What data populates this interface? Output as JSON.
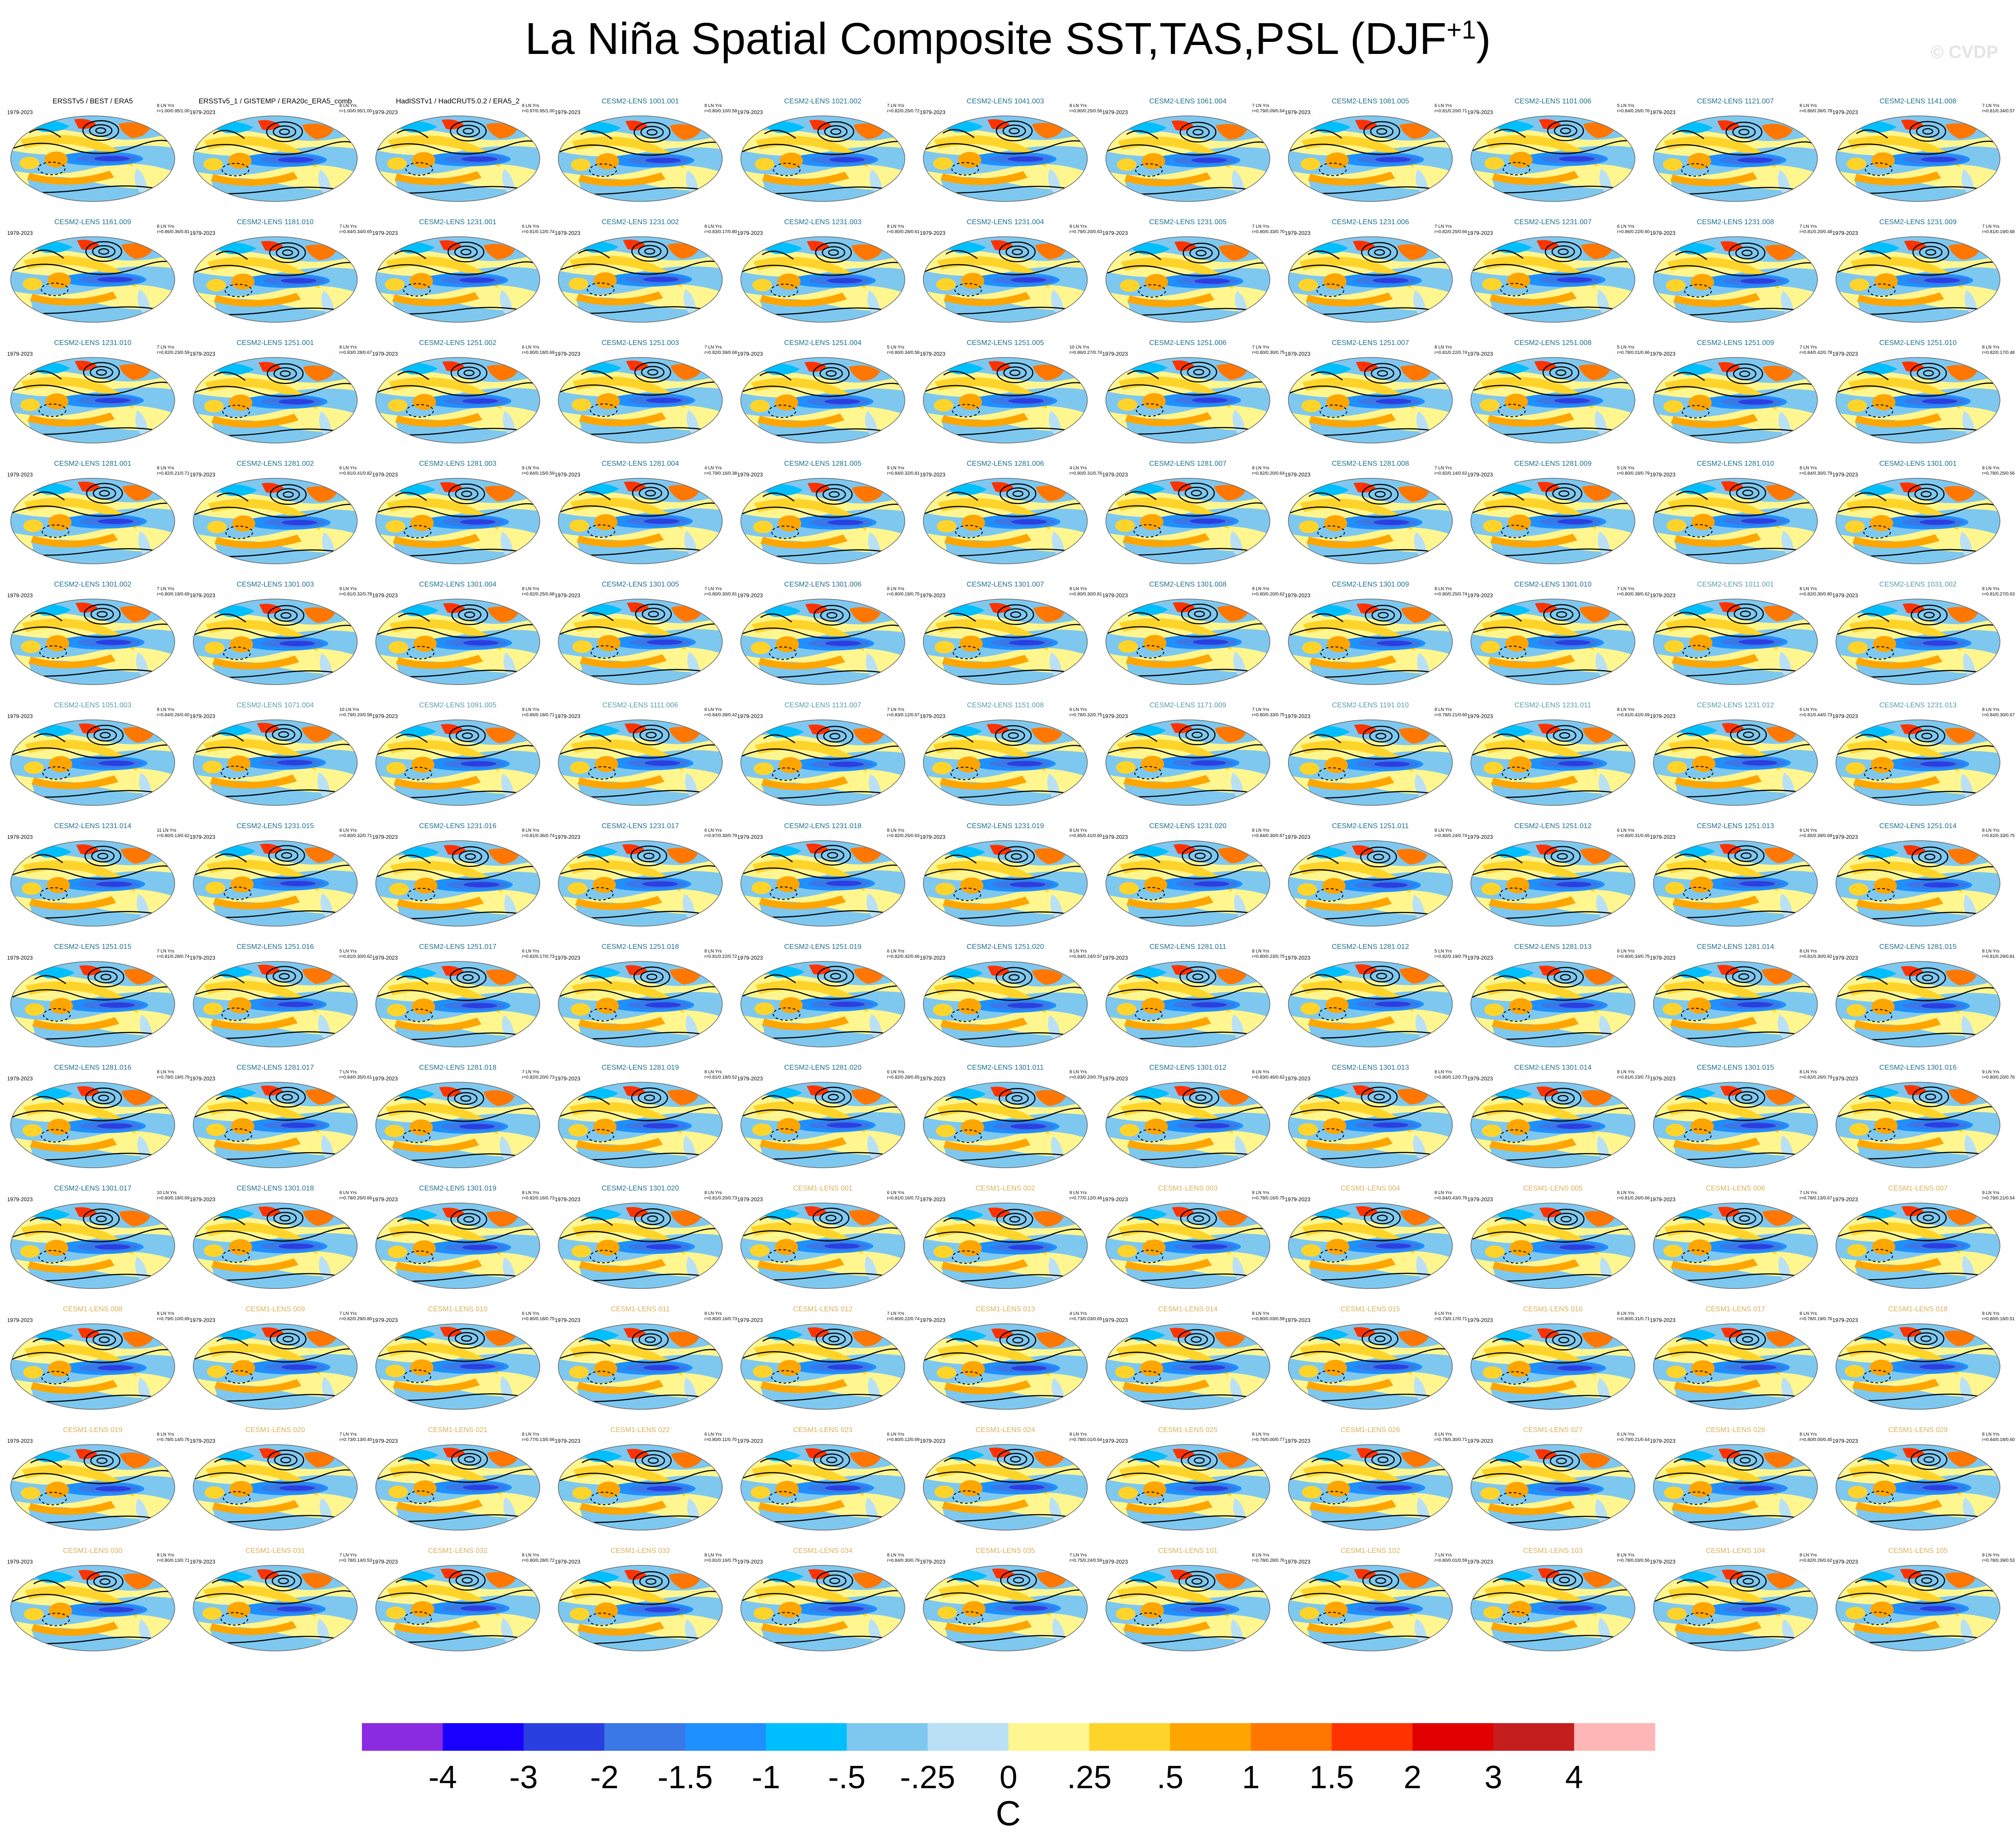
{
  "title": "La Niña Spatial Composite SST,TAS,PSL (DJF",
  "title_superscript": "+1",
  "title_suffix": ")",
  "watermark": "© CVDP",
  "period": "1979-2023",
  "panels": [
    {
      "label": "ERSSTv5 / BEST / ERA5",
      "kind": "obs",
      "n": "8 LN Yrs",
      "stats": "r=1.00/0.95/1.00"
    },
    {
      "label": "ERSSTv5_1 / GISTEMP / ERA20c_ERA5_comb",
      "kind": "obs",
      "n": "8 LN Yrs",
      "stats": "r=1.00/0.95/1.00"
    },
    {
      "label": "HadISSTv1 / HadCRUT5.0.2 / ERA5_2",
      "kind": "obs",
      "n": "8 LN Yrs",
      "stats": "r=0.97/0.95/1.00"
    },
    {
      "label": "CESM2-LENS 1001.001",
      "kind": "cesm2",
      "n": "8 LN Yrs",
      "stats": "r=0.80/0.10/0.58"
    },
    {
      "label": "CESM2-LENS 1021.002",
      "kind": "cesm2",
      "n": "7 LN Yrs",
      "stats": "r=0.82/0.25/0.72"
    },
    {
      "label": "CESM2-LENS 1041.003",
      "kind": "cesm2",
      "n": "8 LN Yrs",
      "stats": "r=0.80/0.25/0.56"
    },
    {
      "label": "CESM2-LENS 1061.004",
      "kind": "cesm2",
      "n": "7 LN Yrs",
      "stats": "r=0.79/0.09/0.64"
    },
    {
      "label": "CESM2-LENS 1081.005",
      "kind": "cesm2",
      "n": "6 LN Yrs",
      "stats": "r=0.81/0.20/0.71"
    },
    {
      "label": "CESM2-LENS 1101.006",
      "kind": "cesm2",
      "n": "5 LN Yrs",
      "stats": "r=0.84/0.26/0.76"
    },
    {
      "label": "CESM2-LENS 1121.007",
      "kind": "cesm2",
      "n": "8 LN Yrs",
      "stats": "r=0.86/0.36/0.78"
    },
    {
      "label": "CESM2-LENS 1141.008",
      "kind": "cesm2",
      "n": "7 LN Yrs",
      "stats": "r=0.81/0.34/0.57"
    },
    {
      "label": "CESM2-LENS 1161.009",
      "kind": "cesm2",
      "n": "8 LN Yrs",
      "stats": "r=0.86/0.36/0.81"
    },
    {
      "label": "CESM2-LENS 1181.010",
      "kind": "cesm2",
      "n": "7 LN Yrs",
      "stats": "r=0.84/0.34/0.65"
    },
    {
      "label": "CESM2-LENS 1231.001",
      "kind": "cesm2",
      "n": "6 LN Yrs",
      "stats": "r=0.81/0.12/0.74"
    },
    {
      "label": "CESM2-LENS 1231.002",
      "kind": "cesm2",
      "n": "8 LN Yrs",
      "stats": "r=0.83/0.17/0.80"
    },
    {
      "label": "CESM2-LENS 1231.003",
      "kind": "cesm2",
      "n": "8 LN Yrs",
      "stats": "r=0.80/0.28/0.61"
    },
    {
      "label": "CESM2-LENS 1231.004",
      "kind": "cesm2",
      "n": "9 LN Yrs",
      "stats": "r=0.79/0.20/0.63"
    },
    {
      "label": "CESM2-LENS 1231.005",
      "kind": "cesm2",
      "n": "7 LN Yrs",
      "stats": "r=0.80/0.33/0.70"
    },
    {
      "label": "CESM2-LENS 1231.006",
      "kind": "cesm2",
      "n": "7 LN Yrs",
      "stats": "r=0.82/0.25/0.66"
    },
    {
      "label": "CESM2-LENS 1231.007",
      "kind": "cesm2",
      "n": "6 LN Yrs",
      "stats": "r=0.86/0.22/0.60"
    },
    {
      "label": "CESM2-LENS 1231.008",
      "kind": "cesm2",
      "n": "7 LN Yrs",
      "stats": "r=0.81/0.20/0.48"
    },
    {
      "label": "CESM2-LENS 1231.009",
      "kind": "cesm2",
      "n": "7 LN Yrs",
      "stats": "r=0.81/0.19/0.68"
    },
    {
      "label": "CESM2-LENS 1231.010",
      "kind": "cesm2",
      "n": "7 LN Yrs",
      "stats": "r=0.82/0.23/0.59"
    },
    {
      "label": "CESM2-LENS 1251.001",
      "kind": "cesm2",
      "n": "8 LN Yrs",
      "stats": "r=0.83/0.28/0.67"
    },
    {
      "label": "CESM2-LENS 1251.002",
      "kind": "cesm2",
      "n": "6 LN Yrs",
      "stats": "r=0.80/0.18/0.69"
    },
    {
      "label": "CESM2-LENS 1251.003",
      "kind": "cesm2",
      "n": "7 LN Yrs",
      "stats": "r=0.82/0.39/0.68"
    },
    {
      "label": "CESM2-LENS 1251.004",
      "kind": "cesm2",
      "n": "5 LN Yrs",
      "stats": "r=0.80/0.34/0.58"
    },
    {
      "label": "CESM2-LENS 1251.005",
      "kind": "cesm2",
      "n": "10 LN Yrs",
      "stats": "r=0.86/0.27/0.74"
    },
    {
      "label": "CESM2-LENS 1251.006",
      "kind": "cesm2",
      "n": "7 LN Yrs",
      "stats": "r=0.80/0.30/0.75"
    },
    {
      "label": "CESM2-LENS 1251.007",
      "kind": "cesm2",
      "n": "8 LN Yrs",
      "stats": "r=0.81/0.22/0.74"
    },
    {
      "label": "CESM2-LENS 1251.008",
      "kind": "cesm2",
      "n": "5 LN Yrs",
      "stats": "r=0.78/0.01/0.66"
    },
    {
      "label": "CESM2-LENS 1251.009",
      "kind": "cesm2",
      "n": "7 LN Yrs",
      "stats": "r=0.84/0.42/0.78"
    },
    {
      "label": "CESM2-LENS 1251.010",
      "kind": "cesm2",
      "n": "8 LN Yrs",
      "stats": "r=0.82/0.17/0.48"
    },
    {
      "label": "CESM2-LENS 1281.001",
      "kind": "cesm2",
      "n": "8 LN Yrs",
      "stats": "r=0.82/0.21/0.71"
    },
    {
      "label": "CESM2-LENS 1281.002",
      "kind": "cesm2",
      "n": "6 LN Yrs",
      "stats": "r=0.81/0.41/0.82"
    },
    {
      "label": "CESM2-LENS 1281.003",
      "kind": "cesm2",
      "n": "9 LN Yrs",
      "stats": "r=0.84/0.15/0.59"
    },
    {
      "label": "CESM2-LENS 1281.004",
      "kind": "cesm2",
      "n": "4 LN Yrs",
      "stats": "r=0.79/0.16/0.38"
    },
    {
      "label": "CESM2-LENS 1281.005",
      "kind": "cesm2",
      "n": "9 LN Yrs",
      "stats": "r=0.84/0.32/0.81"
    },
    {
      "label": "CESM2-LENS 1281.006",
      "kind": "cesm2",
      "n": "4 LN Yrs",
      "stats": "r=0.80/0.31/0.76"
    },
    {
      "label": "CESM2-LENS 1281.007",
      "kind": "cesm2",
      "n": "8 LN Yrs",
      "stats": "r=0.82/0.20/0.64"
    },
    {
      "label": "CESM2-LENS 1281.008",
      "kind": "cesm2",
      "n": "7 LN Yrs",
      "stats": "r=0.82/0.14/0.62"
    },
    {
      "label": "CESM2-LENS 1281.009",
      "kind": "cesm2",
      "n": "5 LN Yrs",
      "stats": "r=0.80/0.18/0.79"
    },
    {
      "label": "CESM2-LENS 1281.010",
      "kind": "cesm2",
      "n": "8 LN Yrs",
      "stats": "r=0.84/0.30/0.79"
    },
    {
      "label": "CESM2-LENS 1301.001",
      "kind": "cesm2",
      "n": "8 LN Yrs",
      "stats": "r=0.78/0.25/0.56"
    },
    {
      "label": "CESM2-LENS 1301.002",
      "kind": "cesm2",
      "n": "7 LN Yrs",
      "stats": "r=0.80/0.19/0.69"
    },
    {
      "label": "CESM2-LENS 1301.003",
      "kind": "cesm2",
      "n": "9 LN Yrs",
      "stats": "r=0.81/0.32/0.78"
    },
    {
      "label": "CESM2-LENS 1301.004",
      "kind": "cesm2",
      "n": "8 LN Yrs",
      "stats": "r=0.82/0.25/0.68"
    },
    {
      "label": "CESM2-LENS 1301.005",
      "kind": "cesm2",
      "n": "7 LN Yrs",
      "stats": "r=0.80/0.30/0.81"
    },
    {
      "label": "CESM2-LENS 1301.006",
      "kind": "cesm2",
      "n": "8 LN Yrs",
      "stats": "r=0.80/0.19/0.75"
    },
    {
      "label": "CESM2-LENS 1301.007",
      "kind": "cesm2",
      "n": "8 LN Yrs",
      "stats": "r=0.80/0.30/0.81"
    },
    {
      "label": "CESM2-LENS 1301.008",
      "kind": "cesm2",
      "n": "9 LN Yrs",
      "stats": "r=0.80/0.20/0.62"
    },
    {
      "label": "CESM2-LENS 1301.009",
      "kind": "cesm2",
      "n": "8 LN Yrs",
      "stats": "r=0.80/0.25/0.74"
    },
    {
      "label": "CESM2-LENS 1301.010",
      "kind": "cesm2",
      "n": "7 LN Yrs",
      "stats": "r=0.80/0.38/0.62"
    },
    {
      "label": "CESM2-LENS 1011.001",
      "kind": "cesm2b",
      "n": "8 LN Yrs",
      "stats": "r=0.82/0.30/0.80"
    },
    {
      "label": "CESM2-LENS 1031.002",
      "kind": "cesm2b",
      "n": "8 LN Yrs",
      "stats": "r=0.81/0.27/0.63"
    },
    {
      "label": "CESM2-LENS 1051.003",
      "kind": "cesm2b",
      "n": "8 LN Yrs",
      "stats": "r=0.84/0.26/0.60"
    },
    {
      "label": "CESM2-LENS 1071.004",
      "kind": "cesm2b",
      "n": "10 LN Yrs",
      "stats": "r=0.79/0.20/0.58"
    },
    {
      "label": "CESM2-LENS 1091.005",
      "kind": "cesm2b",
      "n": "9 LN Yrs",
      "stats": "r=0.86/0.18/0.71"
    },
    {
      "label": "CESM2-LENS 1111.006",
      "kind": "cesm2b",
      "n": "8 LN Yrs",
      "stats": "r=0.84/0.39/0.42"
    },
    {
      "label": "CESM2-LENS 1131.007",
      "kind": "cesm2b",
      "n": "7 LN Yrs",
      "stats": "r=0.83/0.12/0.67"
    },
    {
      "label": "CESM2-LENS 1151.008",
      "kind": "cesm2b",
      "n": "6 LN Yrs",
      "stats": "r=0.78/0.32/0.75"
    },
    {
      "label": "CESM2-LENS 1171.009",
      "kind": "cesm2b",
      "n": "7 LN Yrs",
      "stats": "r=0.80/0.33/0.75"
    },
    {
      "label": "CESM2-LENS 1191.010",
      "kind": "cesm2b",
      "n": "8 LN Yrs",
      "stats": "r=0.78/0.21/0.60"
    },
    {
      "label": "CESM2-LENS 1231.011",
      "kind": "cesm2b",
      "n": "8 LN Yrs",
      "stats": "r=0.81/0.42/0.69"
    },
    {
      "label": "CESM2-LENS 1231.012",
      "kind": "cesm2b",
      "n": "6 LN Yrs",
      "stats": "r=0.81/0.44/0.73"
    },
    {
      "label": "CESM2-LENS 1231.013",
      "kind": "cesm2b",
      "n": "8 LN Yrs",
      "stats": "r=0.84/0.30/0.67"
    },
    {
      "label": "CESM2-LENS 1231.014",
      "kind": "cesm2",
      "n": "11 LN Yrs",
      "stats": "r=0.80/0.13/0.62"
    },
    {
      "label": "CESM2-LENS 1231.015",
      "kind": "cesm2",
      "n": "8 LN Yrs",
      "stats": "r=0.80/0.32/0.71"
    },
    {
      "label": "CESM2-LENS 1231.016",
      "kind": "cesm2",
      "n": "8 LN Yrs",
      "stats": "r=0.81/0.36/0.74"
    },
    {
      "label": "CESM2-LENS 1231.017",
      "kind": "cesm2",
      "n": "6 LN Yrs",
      "stats": "r=0.87/0.30/0.79"
    },
    {
      "label": "CESM2-LENS 1231.018",
      "kind": "cesm2",
      "n": "8 LN Yrs",
      "stats": "r=0.82/0.25/0.63"
    },
    {
      "label": "CESM2-LENS 1231.019",
      "kind": "cesm2",
      "n": "8 LN Yrs",
      "stats": "r=0.85/0.41/0.60"
    },
    {
      "label": "CESM2-LENS 1231.020",
      "kind": "cesm2",
      "n": "8 LN Yrs",
      "stats": "r=0.84/0.30/0.67"
    },
    {
      "label": "CESM2-LENS 1251.011",
      "kind": "cesm2",
      "n": "8 LN Yrs",
      "stats": "r=0.80/0.24/0.74"
    },
    {
      "label": "CESM2-LENS 1251.012",
      "kind": "cesm2",
      "n": "6 LN Yrs",
      "stats": "r=0.80/0.31/0.65"
    },
    {
      "label": "CESM2-LENS 1251.013",
      "kind": "cesm2",
      "n": "6 LN Yrs",
      "stats": "r=0.85/0.39/0.68"
    },
    {
      "label": "CESM2-LENS 1251.014",
      "kind": "cesm2",
      "n": "8 LN Yrs",
      "stats": "r=0.82/0.33/0.75"
    },
    {
      "label": "CESM2-LENS 1251.015",
      "kind": "cesm2",
      "n": "7 LN Yrs",
      "stats": "r=0.81/0.28/0.74"
    },
    {
      "label": "CESM2-LENS 1251.016",
      "kind": "cesm2",
      "n": "5 LN Yrs",
      "stats": "r=0.81/0.30/0.62"
    },
    {
      "label": "CESM2-LENS 1251.017",
      "kind": "cesm2",
      "n": "6 LN Yrs",
      "stats": "r=0.82/0.17/0.73"
    },
    {
      "label": "CESM2-LENS 1251.018",
      "kind": "cesm2",
      "n": "8 LN Yrs",
      "stats": "r=0.81/0.22/0.72"
    },
    {
      "label": "CESM2-LENS 1251.019",
      "kind": "cesm2",
      "n": "6 LN Yrs",
      "stats": "r=0.82/0.42/0.66"
    },
    {
      "label": "CESM2-LENS 1251.020",
      "kind": "cesm2",
      "n": "9 LN Yrs",
      "stats": "r=0.84/0.24/0.57"
    },
    {
      "label": "CESM2-LENS 1281.011",
      "kind": "cesm2",
      "n": "8 LN Yrs",
      "stats": "r=0.80/0.23/0.75"
    },
    {
      "label": "CESM2-LENS 1281.012",
      "kind": "cesm2",
      "n": "5 LN Yrs",
      "stats": "r=0.82/0.19/0.79"
    },
    {
      "label": "CESM2-LENS 1281.013",
      "kind": "cesm2",
      "n": "6 LN Yrs",
      "stats": "r=0.80/0.34/0.75"
    },
    {
      "label": "CESM2-LENS 1281.014",
      "kind": "cesm2",
      "n": "8 LN Yrs",
      "stats": "r=0.81/0.30/0.82"
    },
    {
      "label": "CESM2-LENS 1281.015",
      "kind": "cesm2",
      "n": "8 LN Yrs",
      "stats": "r=0.81/0.29/0.81"
    },
    {
      "label": "CESM2-LENS 1281.016",
      "kind": "cesm2",
      "n": "8 LN Yrs",
      "stats": "r=0.78/0.19/0.79"
    },
    {
      "label": "CESM2-LENS 1281.017",
      "kind": "cesm2",
      "n": "7 LN Yrs",
      "stats": "r=0.84/0.35/0.61"
    },
    {
      "label": "CESM2-LENS 1281.018",
      "kind": "cesm2",
      "n": "7 LN Yrs",
      "stats": "r=0.82/0.20/0.73"
    },
    {
      "label": "CESM2-LENS 1281.019",
      "kind": "cesm2",
      "n": "8 LN Yrs",
      "stats": "r=0.81/0.18/0.52"
    },
    {
      "label": "CESM2-LENS 1281.020",
      "kind": "cesm2",
      "n": "6 LN Yrs",
      "stats": "r=0.82/0.28/0.65"
    },
    {
      "label": "CESM2-LENS 1301.011",
      "kind": "cesm2",
      "n": "8 LN Yrs",
      "stats": "r=0.83/0.20/0.79"
    },
    {
      "label": "CESM2-LENS 1301.012",
      "kind": "cesm2",
      "n": "8 LN Yrs",
      "stats": "r=0.83/0.46/0.62"
    },
    {
      "label": "CESM2-LENS 1301.013",
      "kind": "cesm2",
      "n": "8 LN Yrs",
      "stats": "r=0.80/0.12/0.73"
    },
    {
      "label": "CESM2-LENS 1301.014",
      "kind": "cesm2",
      "n": "8 LN Yrs",
      "stats": "r=0.81/0.23/0.73"
    },
    {
      "label": "CESM2-LENS 1301.015",
      "kind": "cesm2",
      "n": "8 LN Yrs",
      "stats": "r=0.82/0.26/0.79"
    },
    {
      "label": "CESM2-LENS 1301.016",
      "kind": "cesm2",
      "n": "9 LN Yrs",
      "stats": "r=0.80/0.20/0.76"
    },
    {
      "label": "CESM2-LENS 1301.017",
      "kind": "cesm2",
      "n": "10 LN Yrs",
      "stats": "r=0.80/0.18/0.69"
    },
    {
      "label": "CESM2-LENS 1301.018",
      "kind": "cesm2",
      "n": "8 LN Yrs",
      "stats": "r=0.78/0.25/0.66"
    },
    {
      "label": "CESM2-LENS 1301.019",
      "kind": "cesm2",
      "n": "8 LN Yrs",
      "stats": "r=0.82/0.16/0.73"
    },
    {
      "label": "CESM2-LENS 1301.020",
      "kind": "cesm2",
      "n": "8 LN Yrs",
      "stats": "r=0.81/0.20/0.73"
    },
    {
      "label": "CESM1-LENS 001",
      "kind": "cesm1",
      "n": "6 LN Yrs",
      "stats": "r=0.81/0.16/0.72"
    },
    {
      "label": "CESM1-LENS 002",
      "kind": "cesm1",
      "n": "8 LN Yrs",
      "stats": "r=0.77/0.12/0.46"
    },
    {
      "label": "CESM1-LENS 003",
      "kind": "cesm1",
      "n": "8 LN Yrs",
      "stats": "r=0.78/0.16/0.75"
    },
    {
      "label": "CESM1-LENS 004",
      "kind": "cesm1",
      "n": "8 LN Yrs",
      "stats": "r=0.84/0.43/0.76"
    },
    {
      "label": "CESM1-LENS 005",
      "kind": "cesm1",
      "n": "8 LN Yrs",
      "stats": "r=0.81/0.26/0.66"
    },
    {
      "label": "CESM1-LENS 006",
      "kind": "cesm1",
      "n": "7 LN Yrs",
      "stats": "r=0.78/0.13/0.67"
    },
    {
      "label": "CESM1-LENS 007",
      "kind": "cesm1",
      "n": "9 LN Yrs",
      "stats": "r=0.79/0.21/0.54"
    },
    {
      "label": "CESM1-LENS 008",
      "kind": "cesm1",
      "n": "8 LN Yrs",
      "stats": "r=0.79/0.10/0.69"
    },
    {
      "label": "CESM1-LENS 009",
      "kind": "cesm1",
      "n": "7 LN Yrs",
      "stats": "r=0.82/0.29/0.80"
    },
    {
      "label": "CESM1-LENS 010",
      "kind": "cesm1",
      "n": "6 LN Yrs",
      "stats": "r=0.80/0.18/0.75"
    },
    {
      "label": "CESM1-LENS 011",
      "kind": "cesm1",
      "n": "8 LN Yrs",
      "stats": "r=0.80/0.16/0.73"
    },
    {
      "label": "CESM1-LENS 012",
      "kind": "cesm1",
      "n": "7 LN Yrs",
      "stats": "r=0.80/0.22/0.74"
    },
    {
      "label": "CESM1-LENS 013",
      "kind": "cesm1",
      "n": "4 LN Yrs",
      "stats": "r=0.73/0.03/0.65"
    },
    {
      "label": "CESM1-LENS 014",
      "kind": "cesm1",
      "n": "8 LN Yrs",
      "stats": "r=0.80/0.03/0.58"
    },
    {
      "label": "CESM1-LENS 015",
      "kind": "cesm1",
      "n": "6 LN Yrs",
      "stats": "r=0.73/0.17/0.71"
    },
    {
      "label": "CESM1-LENS 016",
      "kind": "cesm1",
      "n": "8 LN Yrs",
      "stats": "r=0.80/0.31/0.71"
    },
    {
      "label": "CESM1-LENS 017",
      "kind": "cesm1",
      "n": "8 LN Yrs",
      "stats": "r=0.78/0.19/0.76"
    },
    {
      "label": "CESM1-LENS 018",
      "kind": "cesm1",
      "n": "8 LN Yrs",
      "stats": "r=0.80/0.18/0.51"
    },
    {
      "label": "CESM1-LENS 019",
      "kind": "cesm1",
      "n": "8 LN Yrs",
      "stats": "r=0.78/0.14/0.76"
    },
    {
      "label": "CESM1-LENS 020",
      "kind": "cesm1",
      "n": "7 LN Yrs",
      "stats": "r=0.73/0.13/0.40"
    },
    {
      "label": "CESM1-LENS 021",
      "kind": "cesm1",
      "n": "8 LN Yrs",
      "stats": "r=0.77/0.13/0.66"
    },
    {
      "label": "CESM1-LENS 022",
      "kind": "cesm1",
      "n": "6 LN Yrs",
      "stats": "r=0.80/0.11/0.70"
    },
    {
      "label": "CESM1-LENS 023",
      "kind": "cesm1",
      "n": "6 LN Yrs",
      "stats": "r=0.80/0.12/0.69"
    },
    {
      "label": "CESM1-LENS 024",
      "kind": "cesm1",
      "n": "8 LN Yrs",
      "stats": "r=0.78/0.01/0.64"
    },
    {
      "label": "CESM1-LENS 025",
      "kind": "cesm1",
      "n": "8 LN Yrs",
      "stats": "r=0.76/0.00/0.77"
    },
    {
      "label": "CESM1-LENS 026",
      "kind": "cesm1",
      "n": "6 LN Yrs",
      "stats": "r=0.78/0.30/0.71"
    },
    {
      "label": "CESM1-LENS 027",
      "kind": "cesm1",
      "n": "6 LN Yrs",
      "stats": "r=0.79/0.21/0.64"
    },
    {
      "label": "CESM1-LENS 028",
      "kind": "cesm1",
      "n": "8 LN Yrs",
      "stats": "r=0.80/0.00/0.45"
    },
    {
      "label": "CESM1-LENS 029",
      "kind": "cesm1",
      "n": "8 LN Yrs",
      "stats": "r=0.84/0.18/0.60"
    },
    {
      "label": "CESM1-LENS 030",
      "kind": "cesm1",
      "n": "8 LN Yrs",
      "stats": "r=0.80/0.13/0.71"
    },
    {
      "label": "CESM1-LENS 031",
      "kind": "cesm1",
      "n": "7 LN Yrs",
      "stats": "r=0.78/0.14/0.53"
    },
    {
      "label": "CESM1-LENS 032",
      "kind": "cesm1",
      "n": "8 LN Yrs",
      "stats": "r=0.80/0.28/0.72"
    },
    {
      "label": "CESM1-LENS 033",
      "kind": "cesm1",
      "n": "8 LN Yrs",
      "stats": "r=0.81/0.16/0.75"
    },
    {
      "label": "CESM1-LENS 034",
      "kind": "cesm1",
      "n": "8 LN Yrs",
      "stats": "r=0.84/0.30/0.79"
    },
    {
      "label": "CESM1-LENS 035",
      "kind": "cesm1",
      "n": "7 LN Yrs",
      "stats": "r=0.75/0.24/0.59"
    },
    {
      "label": "CESM1-LENS 101",
      "kind": "cesm1",
      "n": "8 LN Yrs",
      "stats": "r=0.78/0.28/0.76"
    },
    {
      "label": "CESM1-LENS 102",
      "kind": "cesm1",
      "n": "7 LN Yrs",
      "stats": "r=0.80/0.01/0.59"
    },
    {
      "label": "CESM1-LENS 103",
      "kind": "cesm1",
      "n": "8 LN Yrs",
      "stats": "r=0.78/0.03/0.56"
    },
    {
      "label": "CESM1-LENS 104",
      "kind": "cesm1",
      "n": "8 LN Yrs",
      "stats": "r=0.82/0.26/0.62"
    },
    {
      "label": "CESM1-LENS 105",
      "kind": "cesm1",
      "n": "9 LN Yrs",
      "stats": "r=0.78/0.39/0.53"
    }
  ],
  "label_colors": {
    "obs": "#000000",
    "cesm2": "#1f6f8b",
    "cesm2b": "#5b9aa8",
    "cesm1": "#d8b15a"
  },
  "colorbar": {
    "colors": [
      "#8a2be2",
      "#1a00ff",
      "#2a3fe0",
      "#3a78e8",
      "#1e90ff",
      "#00bfff",
      "#7ec8f0",
      "#b9e0f5",
      "#fff68f",
      "#ffd42a",
      "#ffa500",
      "#ff7700",
      "#ff3300",
      "#e00000",
      "#c41e1e",
      "#ffb6b6"
    ],
    "tick_labels": [
      "-4",
      "-3",
      "-2",
      "-1.5",
      "-1",
      "-.5",
      "-.25",
      "0",
      ".25",
      ".5",
      "1",
      "1.5",
      "2",
      "3",
      "4"
    ],
    "units": "C"
  },
  "chart_data": {
    "type": "heatmap",
    "title": "La Niña Spatial Composite SST,TAS,PSL (DJF+1)",
    "grid_rows": 13,
    "grid_cols": 11,
    "map_projection": "global (robinson-like), ocean/land shaded anomalies with PSL contours",
    "colorbar_levels": [
      -4,
      -3,
      -2,
      -1.5,
      -1,
      -0.5,
      -0.25,
      0,
      0.25,
      0.5,
      1,
      1.5,
      2,
      3,
      4
    ],
    "units": "C"
  }
}
